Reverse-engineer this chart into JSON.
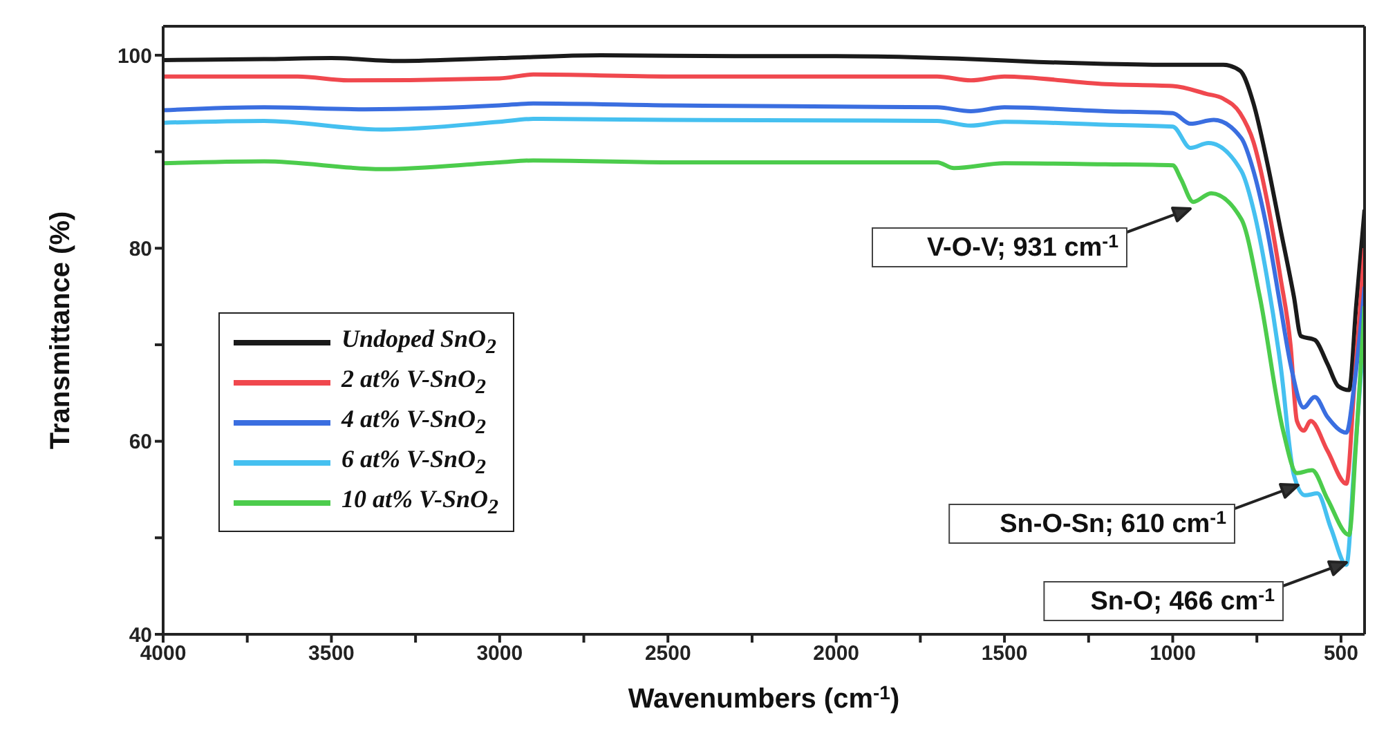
{
  "chart_data": {
    "type": "line",
    "xlabel": "Wavenumbers (cm$^{-1}$)",
    "ylabel": "Transmittance (%)",
    "xlim": [
      4000,
      430
    ],
    "xticks": [
      4000,
      {
        "value": 3750,
        "label": null
      },
      3500,
      {
        "value": 3250,
        "label": null
      },
      3000,
      {
        "value": 2750,
        "label": null
      },
      2500,
      {
        "value": 2250,
        "label": null
      },
      2000,
      {
        "value": 1750,
        "label": null
      },
      1500,
      {
        "value": 1250,
        "label": null
      },
      1000,
      {
        "value": 750,
        "label": null
      },
      500
    ],
    "ylim": [
      40,
      103
    ],
    "yticks": [
      40,
      {
        "value": 50,
        "label": null
      },
      60,
      {
        "value": 70,
        "label": null
      },
      80,
      {
        "value": 90,
        "label": null
      },
      100
    ],
    "grid": false,
    "legend": "left",
    "marker": "none",
    "line_style": "solid",
    "series": [
      {
        "name": "Undoped SnO$_{2}$",
        "color": "#1a1a1a",
        "x": [
          4000,
          3700,
          3500,
          3300,
          3000,
          2700,
          2300,
          2000,
          1600,
          1400,
          1200,
          1000,
          850,
          800,
          760,
          720,
          680,
          640,
          619,
          578,
          540,
          508,
          476,
          455,
          430
        ],
        "values": [
          99.5,
          99.6,
          99.7,
          99.4,
          99.7,
          100,
          99.9,
          99.9,
          99.6,
          99.3,
          99.1,
          99,
          99,
          98.4,
          95,
          89,
          82,
          75,
          70.9,
          70.5,
          68,
          65.7,
          65.3,
          74,
          84
        ]
      },
      {
        "name": "2 at% V-SnO$_{2}$",
        "color": "#f0484e",
        "x": [
          4000,
          3600,
          3450,
          3000,
          2900,
          2500,
          1700,
          1600,
          1500,
          1200,
          1000,
          900,
          850,
          800,
          760,
          720,
          680,
          650,
          631,
          611,
          590,
          540,
          484,
          460,
          430
        ],
        "values": [
          97.8,
          97.8,
          97.4,
          97.6,
          98,
          97.8,
          97.8,
          97.4,
          97.8,
          97,
          96.8,
          96,
          95.5,
          94,
          91,
          85,
          77,
          70,
          62.1,
          61.1,
          62.1,
          59,
          55.6,
          66,
          80
        ]
      },
      {
        "name": "4 at% V-SnO$_{2}$",
        "color": "#3a6ee0",
        "x": [
          4000,
          3700,
          3400,
          3000,
          2900,
          2500,
          1700,
          1600,
          1500,
          1200,
          1000,
          947,
          878,
          796,
          760,
          720,
          680,
          650,
          611,
          578,
          540,
          484,
          460,
          430
        ],
        "values": [
          94.3,
          94.6,
          94.4,
          94.8,
          95,
          94.8,
          94.6,
          94.2,
          94.6,
          94.2,
          94,
          92.9,
          93.3,
          91.4,
          88,
          82,
          74,
          68,
          63.5,
          64.6,
          62.5,
          60.9,
          66,
          76
        ]
      },
      {
        "name": "6 at% V-SnO$_{2}$",
        "color": "#45c0f0",
        "x": [
          4000,
          3700,
          3350,
          3000,
          2900,
          2500,
          1700,
          1600,
          1500,
          1200,
          1000,
          947,
          894,
          796,
          760,
          720,
          680,
          640,
          607,
          570,
          530,
          484,
          460,
          430
        ],
        "values": [
          93,
          93.2,
          92.3,
          93.1,
          93.4,
          93.3,
          93.2,
          92.7,
          93.1,
          92.8,
          92.6,
          90.4,
          90.9,
          88,
          84,
          77,
          68,
          56.5,
          54.4,
          54.6,
          51,
          47.2,
          58,
          72
        ]
      },
      {
        "name": "10 at% V-SnO$_{2}$",
        "color": "#4ccc4c",
        "x": [
          4000,
          3700,
          3350,
          3000,
          2900,
          2500,
          1700,
          1650,
          1500,
          1200,
          1000,
          976,
          939,
          886,
          796,
          742,
          672,
          631,
          586,
          540,
          476,
          455,
          430
        ],
        "values": [
          88.8,
          89,
          88.2,
          88.9,
          89.1,
          88.9,
          88.9,
          88.3,
          88.8,
          88.7,
          88.6,
          87.2,
          84.8,
          85.7,
          83,
          75.1,
          61.1,
          56.7,
          57,
          54,
          50.3,
          60,
          74
        ]
      }
    ],
    "annotations": [
      "V-O-V; 931 cm$^{-1}$",
      "Sn-O-Sn; 610 cm$^{-1}$",
      "Sn-O; 466 cm$^{-1}$"
    ]
  }
}
